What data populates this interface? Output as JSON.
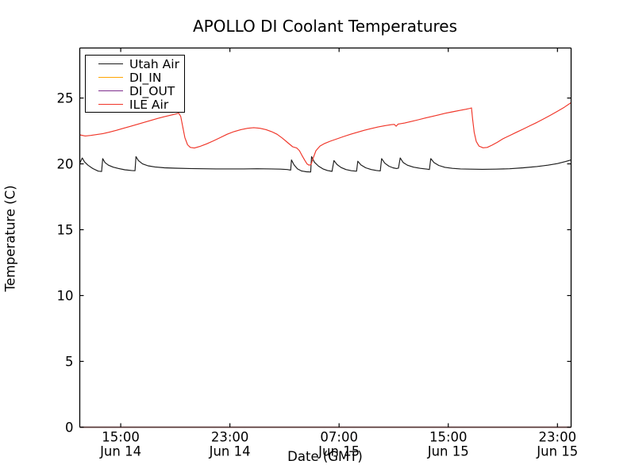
{
  "chart_data": {
    "type": "line",
    "title": "APOLLO DI Coolant Temperatures",
    "xlabel": "Date (GMT)",
    "ylabel": "Temperature (C)",
    "grid": false,
    "x_axis": {
      "unit": "hours after Jun 14 12:00 GMT",
      "range_hours": [
        0,
        36
      ],
      "ticks": [
        {
          "hour": 3,
          "time": "15:00",
          "date": "Jun 14"
        },
        {
          "hour": 11,
          "time": "23:00",
          "date": "Jun 14"
        },
        {
          "hour": 19,
          "time": "07:00",
          "date": "Jun 15"
        },
        {
          "hour": 27,
          "time": "15:00",
          "date": "Jun 15"
        },
        {
          "hour": 35,
          "time": "23:00",
          "date": "Jun 15"
        }
      ]
    },
    "y_axis": {
      "range": [
        0,
        28.8
      ],
      "ticks": [
        0,
        5,
        10,
        15,
        20,
        25
      ]
    },
    "legend": {
      "position": "upper left",
      "entries": [
        "Utah Air",
        "DI_IN",
        "DI_OUT",
        "ILE Air"
      ]
    },
    "series": [
      {
        "name": "Utah Air",
        "color": "#1c1c1c",
        "points": [
          [
            0,
            20.05
          ],
          [
            0.18,
            20.45
          ],
          [
            0.35,
            20.15
          ],
          [
            0.6,
            19.9
          ],
          [
            0.95,
            19.65
          ],
          [
            1.35,
            19.45
          ],
          [
            1.6,
            19.42
          ],
          [
            1.68,
            20.4
          ],
          [
            1.85,
            20.1
          ],
          [
            2.1,
            19.9
          ],
          [
            2.45,
            19.75
          ],
          [
            2.85,
            19.65
          ],
          [
            3.3,
            19.55
          ],
          [
            3.8,
            19.5
          ],
          [
            4.05,
            19.48
          ],
          [
            4.12,
            20.55
          ],
          [
            4.3,
            20.25
          ],
          [
            4.6,
            20.0
          ],
          [
            5.0,
            19.85
          ],
          [
            5.5,
            19.77
          ],
          [
            6.2,
            19.7
          ],
          [
            7,
            19.67
          ],
          [
            8,
            19.65
          ],
          [
            9,
            19.63
          ],
          [
            10,
            19.62
          ],
          [
            11,
            19.62
          ],
          [
            12,
            19.62
          ],
          [
            13,
            19.63
          ],
          [
            14,
            19.62
          ],
          [
            14.7,
            19.6
          ],
          [
            15.2,
            19.57
          ],
          [
            15.45,
            19.53
          ],
          [
            15.51,
            20.3
          ],
          [
            15.7,
            19.92
          ],
          [
            15.95,
            19.62
          ],
          [
            16.25,
            19.46
          ],
          [
            16.6,
            19.4
          ],
          [
            16.92,
            19.38
          ],
          [
            16.98,
            20.55
          ],
          [
            17.2,
            20.12
          ],
          [
            17.5,
            19.82
          ],
          [
            17.82,
            19.62
          ],
          [
            18.15,
            19.5
          ],
          [
            18.48,
            19.43
          ],
          [
            18.62,
            20.25
          ],
          [
            18.85,
            19.95
          ],
          [
            19.15,
            19.72
          ],
          [
            19.5,
            19.57
          ],
          [
            19.9,
            19.48
          ],
          [
            20.28,
            19.44
          ],
          [
            20.37,
            20.2
          ],
          [
            20.6,
            19.92
          ],
          [
            20.95,
            19.7
          ],
          [
            21.35,
            19.57
          ],
          [
            21.75,
            19.5
          ],
          [
            22.02,
            19.47
          ],
          [
            22.12,
            20.4
          ],
          [
            22.35,
            20.05
          ],
          [
            22.65,
            19.82
          ],
          [
            22.95,
            19.7
          ],
          [
            23.2,
            19.65
          ],
          [
            23.35,
            19.68
          ],
          [
            23.48,
            20.45
          ],
          [
            23.7,
            20.1
          ],
          [
            24.0,
            19.9
          ],
          [
            24.45,
            19.75
          ],
          [
            24.95,
            19.66
          ],
          [
            25.45,
            19.6
          ],
          [
            25.62,
            19.57
          ],
          [
            25.72,
            20.4
          ],
          [
            25.95,
            20.1
          ],
          [
            26.3,
            19.88
          ],
          [
            26.75,
            19.74
          ],
          [
            27.3,
            19.66
          ],
          [
            27.9,
            19.62
          ],
          [
            28.6,
            19.6
          ],
          [
            29.5,
            19.59
          ],
          [
            30.5,
            19.6
          ],
          [
            31.5,
            19.63
          ],
          [
            32.5,
            19.7
          ],
          [
            33.5,
            19.8
          ],
          [
            34.3,
            19.9
          ],
          [
            35.0,
            20.02
          ],
          [
            35.6,
            20.18
          ],
          [
            36,
            20.3
          ]
        ]
      },
      {
        "name": "DI_IN",
        "color": "#ffa500",
        "points": [
          [
            0,
            0
          ],
          [
            36,
            0
          ]
        ]
      },
      {
        "name": "DI_OUT",
        "color": "#7e2f8e",
        "points": [
          [
            0,
            0
          ],
          [
            36,
            0
          ]
        ]
      },
      {
        "name": "ILE Air",
        "color": "#f03528",
        "points": [
          [
            0,
            22.2
          ],
          [
            0.4,
            22.12
          ],
          [
            0.8,
            22.16
          ],
          [
            1.2,
            22.22
          ],
          [
            1.7,
            22.3
          ],
          [
            2.2,
            22.42
          ],
          [
            2.7,
            22.55
          ],
          [
            3.2,
            22.7
          ],
          [
            3.7,
            22.85
          ],
          [
            4.2,
            23.0
          ],
          [
            4.7,
            23.15
          ],
          [
            5.2,
            23.3
          ],
          [
            5.7,
            23.45
          ],
          [
            6.2,
            23.58
          ],
          [
            6.7,
            23.7
          ],
          [
            7.0,
            23.78
          ],
          [
            7.25,
            23.85
          ],
          [
            7.4,
            23.6
          ],
          [
            7.55,
            22.8
          ],
          [
            7.7,
            22.0
          ],
          [
            7.9,
            21.45
          ],
          [
            8.1,
            21.25
          ],
          [
            8.4,
            21.2
          ],
          [
            8.8,
            21.32
          ],
          [
            9.3,
            21.52
          ],
          [
            9.8,
            21.75
          ],
          [
            10.3,
            22.0
          ],
          [
            10.8,
            22.25
          ],
          [
            11.3,
            22.45
          ],
          [
            11.8,
            22.6
          ],
          [
            12.3,
            22.7
          ],
          [
            12.75,
            22.75
          ],
          [
            13.2,
            22.7
          ],
          [
            13.65,
            22.6
          ],
          [
            14.05,
            22.45
          ],
          [
            14.45,
            22.25
          ],
          [
            14.85,
            21.95
          ],
          [
            15.25,
            21.6
          ],
          [
            15.6,
            21.3
          ],
          [
            15.9,
            21.2
          ],
          [
            16.1,
            21.0
          ],
          [
            16.3,
            20.6
          ],
          [
            16.5,
            20.25
          ],
          [
            16.65,
            20.0
          ],
          [
            16.8,
            19.9
          ],
          [
            16.95,
            19.95
          ],
          [
            17.05,
            20.3
          ],
          [
            17.3,
            21.0
          ],
          [
            17.6,
            21.35
          ],
          [
            17.95,
            21.55
          ],
          [
            18.35,
            21.72
          ],
          [
            18.85,
            21.9
          ],
          [
            19.35,
            22.08
          ],
          [
            19.85,
            22.25
          ],
          [
            20.35,
            22.4
          ],
          [
            20.85,
            22.55
          ],
          [
            21.35,
            22.68
          ],
          [
            21.85,
            22.8
          ],
          [
            22.35,
            22.9
          ],
          [
            22.85,
            22.98
          ],
          [
            23.05,
            23.0
          ],
          [
            23.18,
            22.86
          ],
          [
            23.32,
            23.02
          ],
          [
            23.8,
            23.1
          ],
          [
            24.3,
            23.22
          ],
          [
            24.8,
            23.35
          ],
          [
            25.3,
            23.48
          ],
          [
            25.8,
            23.6
          ],
          [
            26.3,
            23.72
          ],
          [
            26.8,
            23.85
          ],
          [
            27.3,
            23.95
          ],
          [
            27.8,
            24.05
          ],
          [
            28.3,
            24.15
          ],
          [
            28.62,
            24.22
          ],
          [
            28.7,
            24.25
          ],
          [
            28.78,
            23.4
          ],
          [
            28.9,
            22.4
          ],
          [
            29.05,
            21.7
          ],
          [
            29.25,
            21.35
          ],
          [
            29.55,
            21.22
          ],
          [
            29.85,
            21.25
          ],
          [
            30.2,
            21.42
          ],
          [
            30.6,
            21.65
          ],
          [
            31.0,
            21.9
          ],
          [
            31.5,
            22.15
          ],
          [
            32.0,
            22.4
          ],
          [
            32.5,
            22.65
          ],
          [
            33.0,
            22.9
          ],
          [
            33.5,
            23.15
          ],
          [
            34.0,
            23.42
          ],
          [
            34.5,
            23.7
          ],
          [
            35.0,
            24.0
          ],
          [
            35.5,
            24.3
          ],
          [
            36,
            24.65
          ]
        ]
      }
    ]
  },
  "colors": {
    "background": "#ffffff",
    "axis": "#000000",
    "bottom_spine_blend": "#4e3434"
  }
}
